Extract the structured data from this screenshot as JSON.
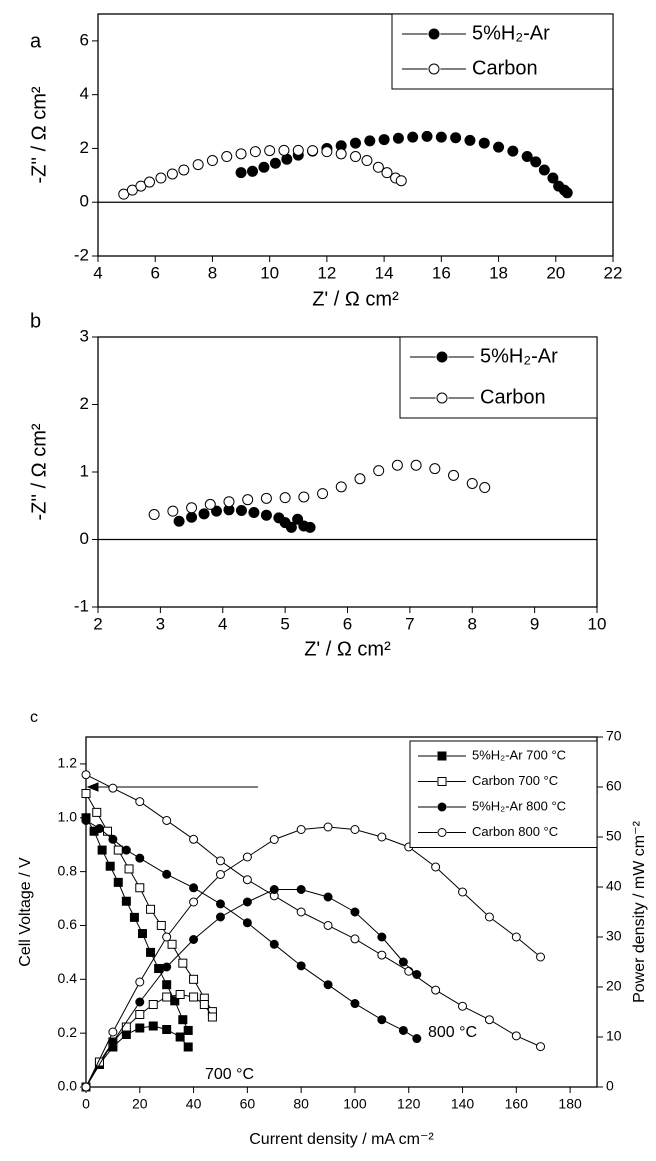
{
  "chart_data": [
    {
      "type": "scatter",
      "panel_label": "a",
      "x_label": "Z' / Ω cm²",
      "y_label": "-Z'' / Ω cm²",
      "xlim": [
        4,
        22
      ],
      "xticks": [
        4,
        6,
        8,
        10,
        12,
        14,
        16,
        18,
        20,
        22
      ],
      "ylim": [
        -2,
        7
      ],
      "yticks": [
        -2,
        0,
        2,
        4,
        6
      ],
      "hline": 0,
      "legend": "upper right",
      "series": [
        {
          "name": "5%H₂-Ar",
          "marker": "circle",
          "filled": true,
          "color": "#000000",
          "x": [
            9.0,
            9.4,
            9.8,
            10.2,
            10.6,
            11.0,
            11.5,
            12.0,
            12.5,
            13.0,
            13.5,
            14.0,
            14.5,
            15.0,
            15.5,
            16.0,
            16.5,
            17.0,
            17.5,
            18.0,
            18.5,
            19.0,
            19.3,
            19.6,
            19.9,
            20.1,
            20.3,
            20.4
          ],
          "values": [
            1.1,
            1.15,
            1.3,
            1.45,
            1.6,
            1.75,
            1.9,
            2.0,
            2.1,
            2.2,
            2.28,
            2.33,
            2.38,
            2.42,
            2.45,
            2.42,
            2.4,
            2.3,
            2.2,
            2.05,
            1.9,
            1.7,
            1.5,
            1.2,
            0.9,
            0.6,
            0.45,
            0.35
          ]
        },
        {
          "name": "Carbon",
          "marker": "circle",
          "filled": false,
          "color": "#000000",
          "x": [
            4.9,
            5.2,
            5.5,
            5.8,
            6.2,
            6.6,
            7.0,
            7.5,
            8.0,
            8.5,
            9.0,
            9.5,
            10.0,
            10.5,
            11.0,
            11.5,
            12.0,
            12.5,
            13.0,
            13.4,
            13.8,
            14.1,
            14.4,
            14.6
          ],
          "values": [
            0.3,
            0.45,
            0.6,
            0.75,
            0.9,
            1.05,
            1.2,
            1.4,
            1.55,
            1.7,
            1.8,
            1.88,
            1.92,
            1.93,
            1.93,
            1.92,
            1.88,
            1.8,
            1.7,
            1.55,
            1.3,
            1.1,
            0.9,
            0.8
          ]
        }
      ]
    },
    {
      "type": "scatter",
      "panel_label": "b",
      "x_label": "Z' / Ω cm²",
      "y_label": "-Z'' / Ω cm²",
      "xlim": [
        2,
        10
      ],
      "xticks": [
        2,
        3,
        4,
        5,
        6,
        7,
        8,
        9,
        10
      ],
      "ylim": [
        -1,
        3
      ],
      "yticks": [
        -1,
        0,
        1,
        2,
        3
      ],
      "hline": 0,
      "legend": "upper right",
      "series": [
        {
          "name": "5%H₂-Ar",
          "marker": "circle",
          "filled": true,
          "color": "#000000",
          "x": [
            3.3,
            3.5,
            3.7,
            3.9,
            4.1,
            4.3,
            4.5,
            4.7,
            4.9,
            5.0,
            5.1,
            5.2,
            5.3,
            5.4
          ],
          "values": [
            0.27,
            0.33,
            0.38,
            0.42,
            0.44,
            0.43,
            0.4,
            0.36,
            0.32,
            0.25,
            0.18,
            0.3,
            0.2,
            0.18
          ]
        },
        {
          "name": "Carbon",
          "marker": "circle",
          "filled": false,
          "color": "#000000",
          "x": [
            2.9,
            3.2,
            3.5,
            3.8,
            4.1,
            4.4,
            4.7,
            5.0,
            5.3,
            5.6,
            5.9,
            6.2,
            6.5,
            6.8,
            7.1,
            7.4,
            7.7,
            8.0,
            8.2
          ],
          "values": [
            0.37,
            0.42,
            0.47,
            0.52,
            0.56,
            0.59,
            0.61,
            0.62,
            0.63,
            0.68,
            0.78,
            0.9,
            1.02,
            1.1,
            1.1,
            1.05,
            0.95,
            0.83,
            0.77
          ]
        }
      ]
    },
    {
      "type": "line",
      "panel_label": "c",
      "x_label": "Current density / mA cm⁻²",
      "y_label": "Cell Voltage / V",
      "y2_label": "Power density / mW cm⁻²",
      "xlim": [
        0,
        190
      ],
      "xticks": [
        0,
        20,
        40,
        60,
        80,
        100,
        120,
        140,
        160,
        180
      ],
      "ylim": [
        0,
        1.3
      ],
      "yticks": [
        {
          "value": 0,
          "label": "0.0"
        },
        0.2,
        0.4,
        0.6,
        0.8,
        {
          "value": 1,
          "label": "1.0"
        },
        1.2
      ],
      "y2lim": [
        0,
        70
      ],
      "y2ticks": [
        0,
        10,
        20,
        30,
        40,
        50,
        60,
        70
      ],
      "legend": "upper right",
      "annotations": [
        "700 °C",
        "800 °C"
      ],
      "series": [
        {
          "name": "5%H₂-Ar 700 °C",
          "marker": "square",
          "filled": true,
          "color": "#000000",
          "x": [
            0,
            3,
            6,
            9,
            12,
            15,
            18,
            21,
            24,
            27,
            30,
            33,
            36,
            38
          ],
          "values": [
            1.0,
            0.95,
            0.88,
            0.82,
            0.76,
            0.69,
            0.63,
            0.57,
            0.5,
            0.44,
            0.38,
            0.32,
            0.25,
            0.21
          ]
        },
        {
          "name": "Carbon 700 °C",
          "marker": "square",
          "filled": false,
          "color": "#000000",
          "x": [
            0,
            4,
            8,
            12,
            16,
            20,
            24,
            28,
            32,
            36,
            40,
            44,
            47
          ],
          "values": [
            1.09,
            1.02,
            0.95,
            0.88,
            0.81,
            0.74,
            0.66,
            0.6,
            0.53,
            0.46,
            0.4,
            0.33,
            0.28
          ]
        },
        {
          "name": "5%H₂-Ar 800 °C",
          "marker": "circle",
          "filled": true,
          "color": "#000000",
          "x": [
            0,
            5,
            10,
            15,
            20,
            30,
            40,
            50,
            60,
            70,
            80,
            90,
            100,
            110,
            118,
            123
          ],
          "values": [
            0.99,
            0.96,
            0.92,
            0.88,
            0.85,
            0.79,
            0.74,
            0.68,
            0.61,
            0.53,
            0.45,
            0.38,
            0.31,
            0.25,
            0.21,
            0.18
          ]
        },
        {
          "name": "Carbon 800 °C",
          "marker": "circle",
          "filled": false,
          "color": "#000000",
          "x": [
            0,
            10,
            20,
            30,
            40,
            50,
            60,
            70,
            80,
            90,
            100,
            110,
            120,
            130,
            140,
            150,
            160,
            169
          ],
          "values": [
            1.16,
            1.11,
            1.06,
            0.99,
            0.92,
            0.84,
            0.77,
            0.71,
            0.65,
            0.6,
            0.55,
            0.49,
            0.43,
            0.36,
            0.3,
            0.25,
            0.19,
            0.15
          ]
        }
      ],
      "y2_series": [
        {
          "axis": "y2",
          "marker": "square",
          "filled": true,
          "color": "#000000",
          "x": [
            0,
            5,
            10,
            15,
            20,
            25,
            30,
            35,
            38
          ],
          "values": [
            0,
            4.5,
            8,
            10.5,
            11.8,
            12.2,
            11.5,
            10,
            8
          ]
        },
        {
          "axis": "y2",
          "marker": "square",
          "filled": false,
          "color": "#000000",
          "x": [
            0,
            5,
            10,
            15,
            20,
            25,
            30,
            35,
            40,
            44,
            47
          ],
          "values": [
            0,
            5,
            9,
            12,
            14.5,
            16.5,
            18,
            18.5,
            18,
            16.5,
            14
          ]
        },
        {
          "axis": "y2",
          "marker": "circle",
          "filled": true,
          "color": "#000000",
          "x": [
            0,
            10,
            20,
            30,
            40,
            50,
            60,
            70,
            80,
            90,
            100,
            110,
            118,
            123
          ],
          "values": [
            0,
            9,
            17,
            24,
            29.5,
            34,
            37,
            39.5,
            39.5,
            38,
            35,
            30,
            25,
            22.5
          ]
        },
        {
          "axis": "y2",
          "marker": "circle",
          "filled": false,
          "color": "#000000",
          "x": [
            0,
            10,
            20,
            30,
            40,
            50,
            60,
            70,
            80,
            90,
            100,
            110,
            120,
            130,
            140,
            150,
            160,
            169
          ],
          "values": [
            0,
            11,
            21,
            30,
            37,
            42.5,
            46,
            49.5,
            51.5,
            52,
            51.5,
            50,
            48,
            44,
            39,
            34,
            30,
            26
          ]
        }
      ]
    }
  ]
}
